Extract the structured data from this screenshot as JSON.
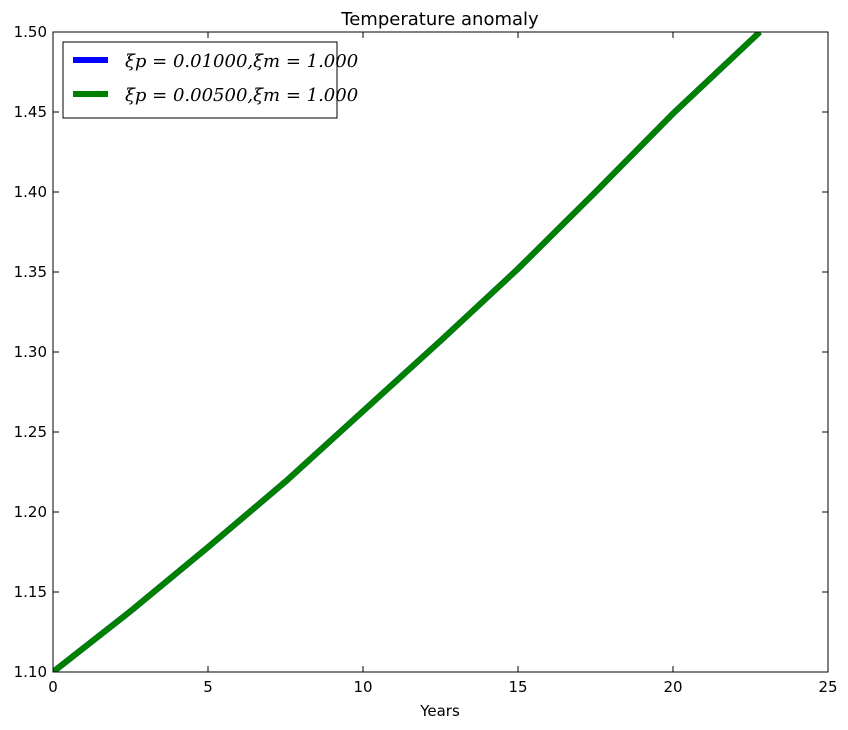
{
  "chart_data": {
    "type": "line",
    "title": "Temperature anomaly",
    "xlabel": "Years",
    "ylabel": "",
    "xlim": [
      0,
      25
    ],
    "ylim": [
      1.1,
      1.5
    ],
    "xticks": [
      0,
      5,
      10,
      15,
      20,
      25
    ],
    "xtick_labels": [
      "0",
      "5",
      "10",
      "15",
      "20",
      "25"
    ],
    "yticks": [
      1.1,
      1.15,
      1.2,
      1.25,
      1.3,
      1.35,
      1.4,
      1.45,
      1.5
    ],
    "ytick_labels": [
      "1.10",
      "1.15",
      "1.20",
      "1.25",
      "1.30",
      "1.35",
      "1.40",
      "1.45",
      "1.50"
    ],
    "grid": false,
    "legend_position": "top-left",
    "series": [
      {
        "name": "ξp = 0.01000,ξm = 1.000",
        "color": "#0000ff",
        "x": [
          0,
          2.5,
          5,
          7.5,
          10,
          12.5,
          15,
          17.5,
          20,
          22.8
        ],
        "y": [
          1.1,
          1.138,
          1.178,
          1.219,
          1.263,
          1.307,
          1.352,
          1.4,
          1.449,
          1.5
        ]
      },
      {
        "name": "ξp = 0.00500,ξm = 1.000",
        "color": "#008000",
        "x": [
          0,
          2.5,
          5,
          7.5,
          10,
          12.5,
          15,
          17.5,
          20,
          22.8
        ],
        "y": [
          1.1,
          1.138,
          1.178,
          1.219,
          1.263,
          1.307,
          1.352,
          1.4,
          1.449,
          1.5
        ]
      }
    ]
  }
}
